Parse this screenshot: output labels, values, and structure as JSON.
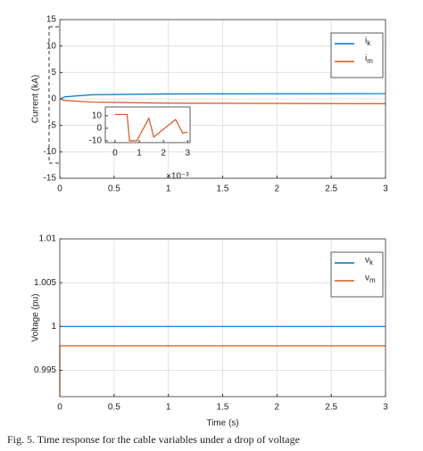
{
  "chart_data": [
    {
      "type": "line",
      "ylabel": "Current (kA)",
      "grid": true,
      "legend": "upper right",
      "xlim": [
        0,
        3
      ],
      "xticks": [
        0,
        0.5,
        1,
        1.5,
        2,
        2.5,
        3
      ],
      "ylim": [
        -15,
        15
      ],
      "yticks": [
        -15,
        -10,
        -5,
        0,
        5,
        10,
        15
      ],
      "x": [
        0,
        0.05,
        0.3,
        1,
        3
      ],
      "series": [
        {
          "name": "i_k",
          "color": "#0072bd",
          "values": [
            0,
            0.4,
            0.8,
            0.95,
            1.0
          ]
        },
        {
          "name": "i_m",
          "color": "#d95319",
          "values": [
            0,
            -0.3,
            -0.6,
            -0.8,
            -0.9
          ]
        }
      ]
    },
    {
      "type": "line",
      "grid": false,
      "xscale_label": "×10⁻³",
      "xlim": [
        -0.4,
        3.1
      ],
      "xticks": [
        0,
        1,
        2,
        3
      ],
      "ylim": [
        -11.5,
        17
      ],
      "yticks": [
        -10,
        0,
        10
      ],
      "x": [
        0,
        0.5,
        0.6,
        0.9,
        1.4,
        1.6,
        2.5,
        2.8,
        3
      ],
      "series": [
        {
          "color": "#d95319",
          "values": [
            11,
            11,
            -10,
            -10,
            8,
            -7,
            7,
            -4,
            -3
          ]
        }
      ]
    },
    {
      "type": "line",
      "ylabel": "Voltage (pu)",
      "xlabel": "Time (s)",
      "grid": true,
      "legend": "upper right",
      "xlim": [
        0,
        3
      ],
      "xticks": [
        0,
        0.5,
        1,
        1.5,
        2,
        2.5,
        3
      ],
      "ylim": [
        0.992,
        1.01
      ],
      "yticks": [
        0.995,
        1,
        1.005,
        1.01
      ],
      "x": [
        0,
        0,
        3
      ],
      "series": [
        {
          "name": "v_k",
          "color": "#0072bd",
          "values": [
            1,
            1,
            1
          ]
        },
        {
          "name": "v_m",
          "color": "#d95319",
          "values": [
            0.992,
            0.9978,
            0.9978
          ]
        }
      ]
    }
  ],
  "caption": "Fig. 5.  Time response for the cable variables under a drop of voltage"
}
